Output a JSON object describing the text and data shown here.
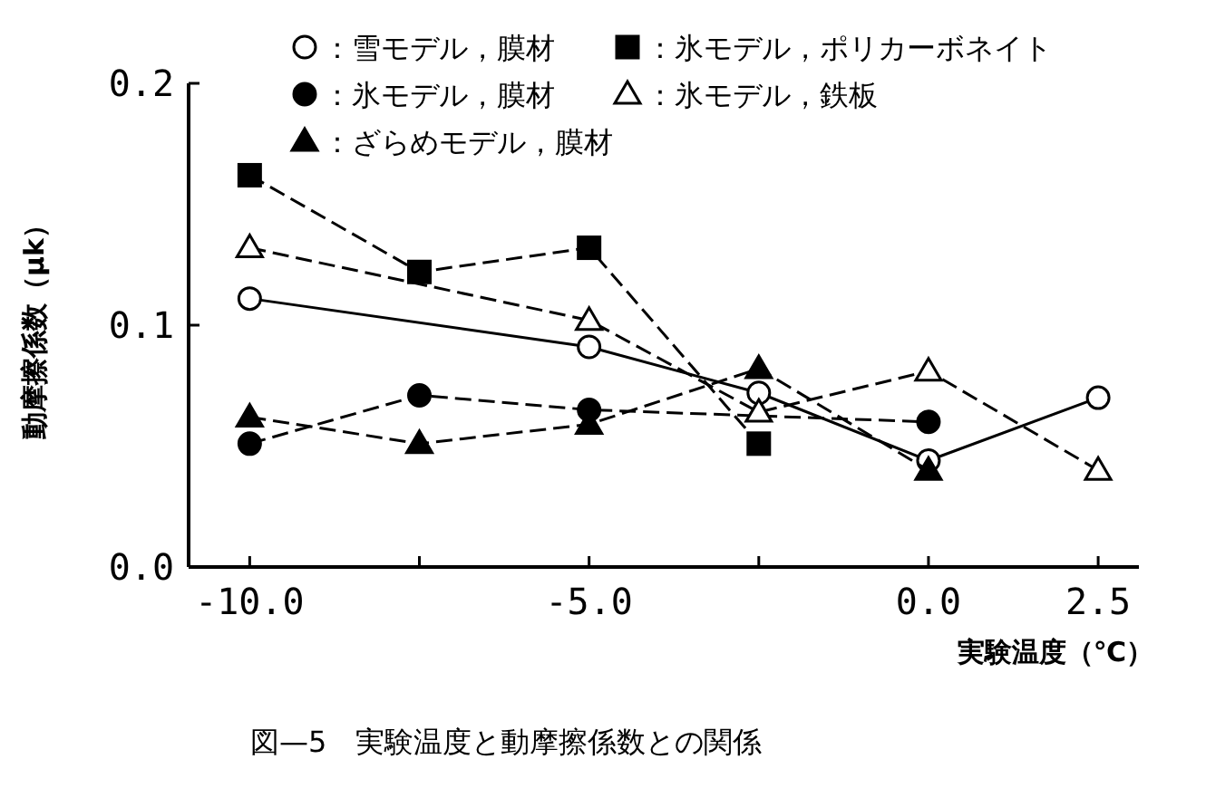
{
  "chart_data": {
    "type": "line",
    "ylabel": "動摩擦係数（μk）",
    "xlabel": "実験温度（℃）",
    "annotations": [
      "図—5　実験温度と動摩擦係数との関係"
    ],
    "xlim": [
      -10.9,
      3.1
    ],
    "xticks": [
      {
        "value": -10,
        "label": "-10.0"
      },
      {
        "value": -7.5,
        "label": null
      },
      {
        "value": -5,
        "label": "-5.0"
      },
      {
        "value": -2.5,
        "label": null
      },
      {
        "value": 0,
        "label": "0.0"
      },
      {
        "value": 2.5,
        "label": "2.5"
      }
    ],
    "ylim": [
      0,
      0.2
    ],
    "yticks": [
      {
        "value": 0,
        "label": "0.0"
      },
      {
        "value": 0.1,
        "label": "0.1"
      },
      {
        "value": 0.2,
        "label": "0.2"
      }
    ],
    "grid": false,
    "legend": "top",
    "series": [
      {
        "name": "：雪モデル，膜材",
        "color": "#000000",
        "marker": "circle",
        "colors": [
          "#ffffff",
          "#ffffff",
          "#ffffff",
          "#ffffff",
          "#ffffff"
        ],
        "line_style": "solid",
        "x": [
          -10,
          -5,
          -2.5,
          0,
          2.5
        ],
        "values": [
          0.111,
          0.091,
          0.072,
          0.044,
          0.07
        ]
      },
      {
        "name": "：氷モデル，ポリカーボネイト",
        "color": "#000000",
        "marker": "square",
        "line_style": "dashed",
        "x": [
          -10,
          -7.5,
          -5,
          -2.5
        ],
        "values": [
          0.162,
          0.122,
          0.132,
          0.051
        ]
      },
      {
        "name": "：氷モデル，膜材",
        "color": "#000000",
        "marker": "circle",
        "line_style": "dashed",
        "x": [
          -10,
          -7.5,
          -5,
          0
        ],
        "values": [
          0.051,
          0.071,
          0.065,
          0.06
        ]
      },
      {
        "name": "：氷モデル，鉄板",
        "color": "#000000",
        "marker": "triangle",
        "colors": [
          "#ffffff",
          "#ffffff",
          "#ffffff",
          "#ffffff",
          "#ffffff"
        ],
        "line_style": "dashed",
        "x": [
          -10,
          -5,
          -2.5,
          0,
          2.5
        ],
        "values": [
          0.132,
          0.102,
          0.064,
          0.081,
          0.04
        ]
      },
      {
        "name": "：ざらめモデル，膜材",
        "color": "#000000",
        "marker": "triangle",
        "line_style": "dashed",
        "x": [
          -10,
          -7.5,
          -5,
          -2.5,
          0
        ],
        "values": [
          0.062,
          0.051,
          0.059,
          0.082,
          0.04
        ]
      }
    ]
  }
}
